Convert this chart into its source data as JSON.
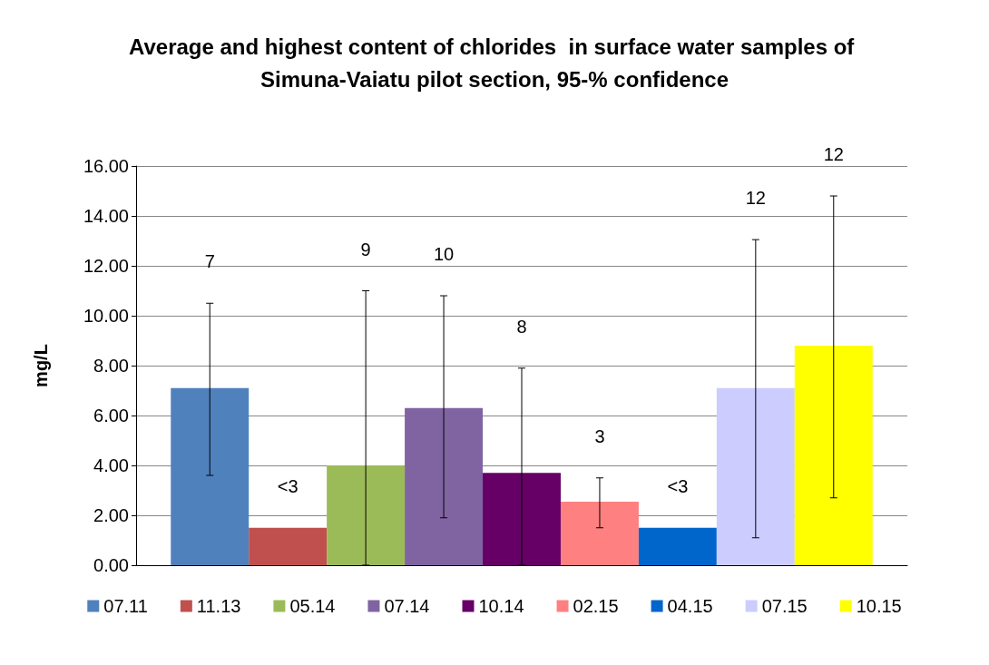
{
  "chart_data": {
    "type": "bar",
    "title": "Average and highest content of chlorides  in surface water samples of Simuna-Vaiatu pilot section, 95-% confidence",
    "ylabel": "mg/L",
    "categories": [
      null
    ],
    "series": [
      {
        "name": "07.11",
        "color": "#4f81bd",
        "values": [
          7.1
        ],
        "errors": [
          [
            3.6,
            10.5
          ]
        ]
      },
      {
        "name": "11.13",
        "color": "#c0504d",
        "values": [
          1.5
        ]
      },
      {
        "name": "05.14",
        "color": "#9bbb59",
        "values": [
          4.0
        ],
        "errors": [
          [
            0,
            11.0
          ]
        ]
      },
      {
        "name": "07.14",
        "color": "#8064a2",
        "values": [
          6.3
        ],
        "errors": [
          [
            1.9,
            10.8
          ]
        ]
      },
      {
        "name": "10.14",
        "color": "#660066",
        "values": [
          3.7
        ],
        "errors": [
          [
            0,
            7.9
          ]
        ]
      },
      {
        "name": "02.15",
        "color": "#ff8080",
        "values": [
          2.55
        ],
        "errors": [
          [
            1.5,
            3.5
          ]
        ]
      },
      {
        "name": "04.15",
        "color": "#0066cc",
        "values": [
          1.5
        ]
      },
      {
        "name": "07.15",
        "color": "#ccccff",
        "values": [
          7.1
        ],
        "errors": [
          [
            1.1,
            13.05
          ]
        ]
      },
      {
        "name": "10.15",
        "color": "#ffff00",
        "values": [
          8.8
        ],
        "errors": [
          [
            2.7,
            14.8
          ]
        ]
      }
    ],
    "ylim": [
      0,
      16
    ],
    "yticks": [
      {
        "value": 0,
        "label": "0.00"
      },
      {
        "value": 2,
        "label": "2.00"
      },
      {
        "value": 4,
        "label": "4.00"
      },
      {
        "value": 6,
        "label": "6.00"
      },
      {
        "value": 8,
        "label": "8.00"
      },
      {
        "value": 10,
        "label": "10.00"
      },
      {
        "value": 12,
        "label": "12.00"
      },
      {
        "value": 14,
        "label": "14.00"
      },
      {
        "value": 16,
        "label": "16.00"
      }
    ],
    "annotations": [
      "7",
      "<3",
      "9",
      "10",
      "8",
      "3",
      "<3",
      "12",
      "12"
    ],
    "grid": "y",
    "legend": "bottom"
  }
}
